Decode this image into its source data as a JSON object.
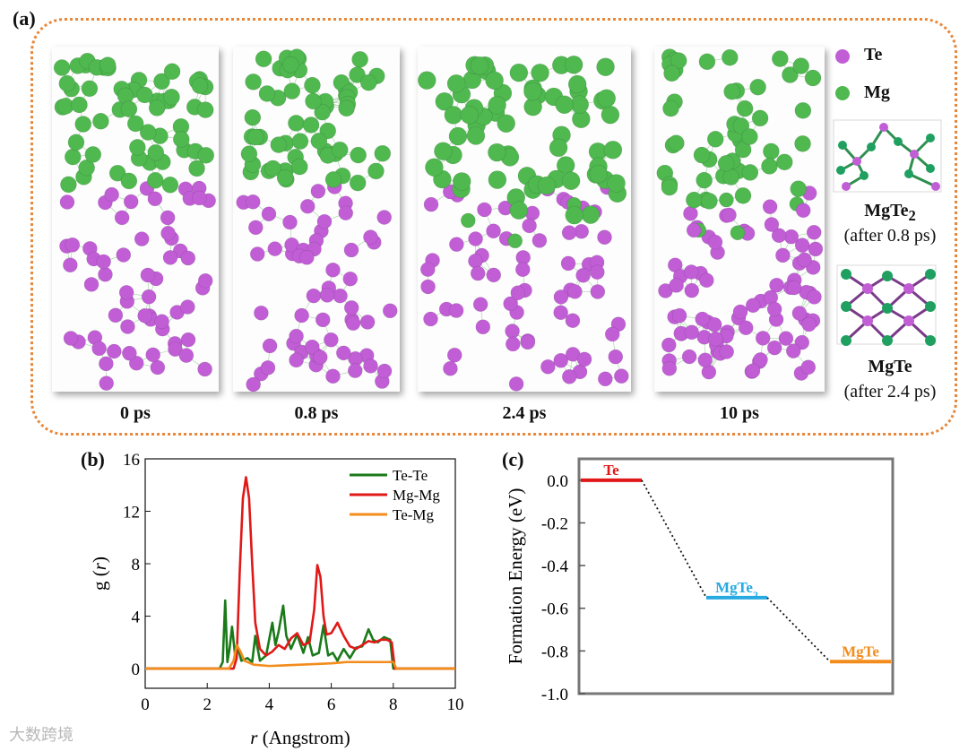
{
  "panel_a": {
    "label": "(a)",
    "snapshots": [
      {
        "time": "0 ps"
      },
      {
        "time": "0.8 ps"
      },
      {
        "time": "2.4 ps"
      },
      {
        "time": "10 ps"
      }
    ],
    "legend": [
      {
        "element": "Te",
        "color": "#c15ed6"
      },
      {
        "element": "Mg",
        "color": "#4fb84f"
      }
    ],
    "structures": [
      {
        "formula": "MgTe",
        "subscript": "2",
        "note": "(after 0.8 ps)"
      },
      {
        "formula": "MgTe",
        "subscript": "",
        "note": "(after 2.4 ps)"
      }
    ]
  },
  "panel_b": {
    "label": "(b)"
  },
  "panel_c": {
    "label": "(c)"
  },
  "watermark": "大数跨境",
  "chart_data": [
    {
      "type": "line",
      "panel": "(b)",
      "xlabel_italic": "r",
      "xlabel_rest": " (Angstrom)",
      "ylabel_italic": "r",
      "ylabel_prefix": "g (",
      "ylabel_suffix": ")",
      "xlim": [
        0,
        10
      ],
      "ylim": [
        -1.5,
        16
      ],
      "xticks": [
        0,
        2,
        4,
        6,
        8,
        10
      ],
      "yticks": [
        0,
        4,
        8,
        12,
        16
      ],
      "grid": false,
      "legend_position": "top-right",
      "series": [
        {
          "name": "Te-Te",
          "color": "#1a7a1a",
          "x": [
            0,
            2.4,
            2.5,
            2.58,
            2.65,
            2.72,
            2.8,
            2.9,
            3.0,
            3.1,
            3.3,
            3.45,
            3.55,
            3.7,
            3.9,
            4.1,
            4.2,
            4.3,
            4.45,
            4.55,
            4.7,
            4.9,
            5.1,
            5.25,
            5.4,
            5.6,
            5.75,
            5.9,
            6.05,
            6.2,
            6.4,
            6.6,
            6.8,
            7.0,
            7.2,
            7.35,
            7.5,
            7.7,
            7.9,
            8.0,
            8.1,
            8.3,
            10
          ],
          "y": [
            0,
            0,
            0.5,
            5.2,
            0.5,
            1.5,
            3.2,
            1.0,
            1.5,
            0.6,
            0.8,
            0.5,
            2.5,
            0.6,
            1.0,
            3.5,
            1.8,
            2.8,
            4.8,
            2.5,
            1.5,
            2.6,
            1.2,
            2.4,
            1.0,
            1.2,
            3.3,
            1.0,
            1.2,
            0.6,
            1.5,
            0.8,
            1.6,
            1.7,
            3.0,
            2.2,
            2.0,
            2.4,
            2.2,
            0.0,
            0.0,
            0,
            0
          ]
        },
        {
          "name": "Mg-Mg",
          "color": "#e01818",
          "x": [
            0,
            2.85,
            2.95,
            3.05,
            3.15,
            3.25,
            3.35,
            3.45,
            3.55,
            3.7,
            3.9,
            4.1,
            4.3,
            4.5,
            4.7,
            4.9,
            5.1,
            5.3,
            5.45,
            5.55,
            5.65,
            5.75,
            5.85,
            6.0,
            6.2,
            6.4,
            6.6,
            6.8,
            7.0,
            7.2,
            7.4,
            7.6,
            7.8,
            7.95,
            8.05,
            8.2,
            10
          ],
          "y": [
            0,
            0,
            0.8,
            7.5,
            13.0,
            14.6,
            13.0,
            8.0,
            3.5,
            1.5,
            1.0,
            1.3,
            1.8,
            1.5,
            2.3,
            2.7,
            1.8,
            2.0,
            4.5,
            7.9,
            7.0,
            4.0,
            2.6,
            2.7,
            3.5,
            2.5,
            1.7,
            1.5,
            1.8,
            2.1,
            2.0,
            2.2,
            2.2,
            2.0,
            0.0,
            0,
            0
          ]
        },
        {
          "name": "Te-Mg",
          "color": "#f28c1c",
          "x": [
            0,
            2.7,
            2.85,
            2.95,
            3.05,
            3.2,
            3.5,
            4.0,
            4.5,
            5.0,
            5.5,
            6.0,
            6.5,
            7.0,
            7.5,
            8.0,
            8.1,
            10
          ],
          "y": [
            0,
            0,
            0.6,
            1.8,
            1.4,
            0.6,
            0.3,
            0.2,
            0.25,
            0.3,
            0.35,
            0.4,
            0.5,
            0.5,
            0.5,
            0.5,
            0.0,
            0
          ]
        }
      ]
    },
    {
      "type": "bar",
      "panel": "(c)",
      "ylabel": "Formation Energy (eV)",
      "ylim": [
        -1.0,
        0.1
      ],
      "yticks": [
        0.0,
        -0.2,
        -0.4,
        -0.6,
        -0.8,
        -1.0
      ],
      "ytick_labels": [
        "0.0",
        "-0.2",
        "-0.4",
        "-0.6",
        "-0.8",
        "-1.0"
      ],
      "grid": false,
      "levels": [
        {
          "name": "Te",
          "value": 0.0,
          "color": "#e01818"
        },
        {
          "name": "MgTe2",
          "display_base": "MgTe",
          "display_sub": "2",
          "value": -0.55,
          "color": "#27a9e1"
        },
        {
          "name": "MgTe",
          "value": -0.85,
          "color": "#f28c1c"
        }
      ]
    }
  ]
}
